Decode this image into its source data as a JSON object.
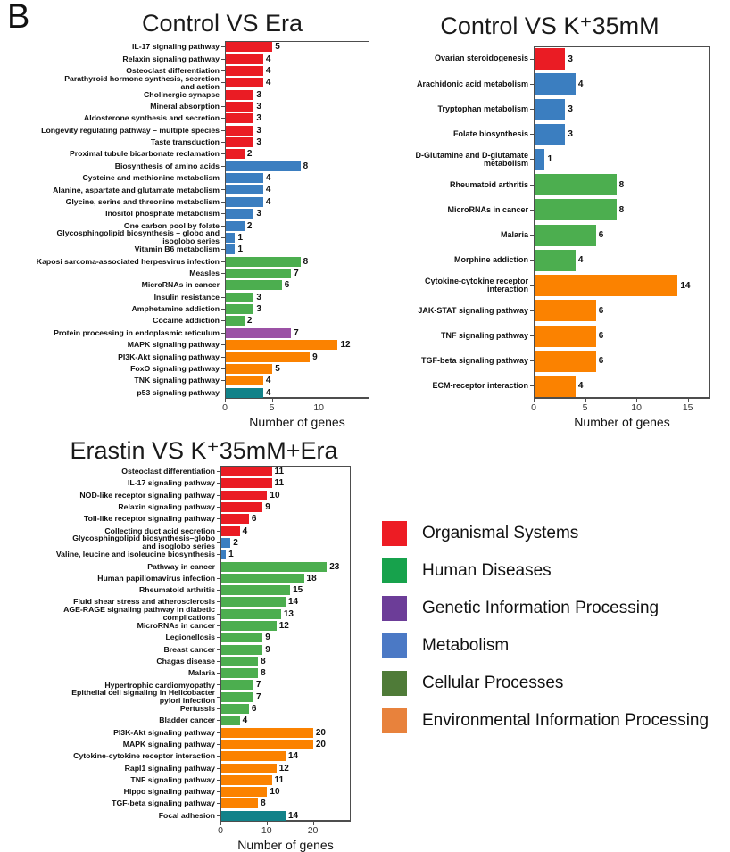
{
  "panel_letter": "B",
  "categories": {
    "OS": "Organismal Systems",
    "HD": "Human Diseases",
    "GIP": "Genetic Information Processing",
    "M": "Metabolism",
    "CP": "Cellular Processes",
    "EIP": "Environmental Information Processing"
  },
  "bar_palette": {
    "OS": "#EA1C24",
    "HD": "#4CAE4F",
    "GIP": "#9B51A5",
    "M": "#3B7EC0",
    "CP": "#128289",
    "EIP": "#FB8200"
  },
  "chart_data": [
    {
      "type": "bar",
      "orientation": "horizontal",
      "title": "Control VS Era",
      "xlabel": "Number of genes",
      "xlim": [
        0,
        15.4
      ],
      "xticks": [
        0,
        5,
        10
      ],
      "grid": false,
      "bars": [
        {
          "label": "IL-17 signaling pathway",
          "value": 5,
          "cat": "OS"
        },
        {
          "label": "Relaxin signaling pathway",
          "value": 4,
          "cat": "OS"
        },
        {
          "label": "Osteoclast differentiation",
          "value": 4,
          "cat": "OS"
        },
        {
          "label": "Parathyroid hormone synthesis, secretion\nand action",
          "value": 4,
          "cat": "OS"
        },
        {
          "label": "Cholinergic synapse",
          "value": 3,
          "cat": "OS"
        },
        {
          "label": "Mineral absorption",
          "value": 3,
          "cat": "OS"
        },
        {
          "label": "Aldosterone synthesis and secretion",
          "value": 3,
          "cat": "OS"
        },
        {
          "label": "Longevity regulating pathway – multiple species",
          "value": 3,
          "cat": "OS"
        },
        {
          "label": "Taste transduction",
          "value": 3,
          "cat": "OS"
        },
        {
          "label": "Proximal tubule bicarbonate reclamation",
          "value": 2,
          "cat": "OS"
        },
        {
          "label": "Biosynthesis of amino acids",
          "value": 8,
          "cat": "M"
        },
        {
          "label": "Cysteine and methionine metabolism",
          "value": 4,
          "cat": "M"
        },
        {
          "label": "Alanine, aspartate and glutamate metabolism",
          "value": 4,
          "cat": "M"
        },
        {
          "label": "Glycine, serine and threonine metabolism",
          "value": 4,
          "cat": "M"
        },
        {
          "label": "Inositol phosphate metabolism",
          "value": 3,
          "cat": "M"
        },
        {
          "label": "One carbon pool by folate",
          "value": 2,
          "cat": "M"
        },
        {
          "label": "Glycosphingolipid biosynthesis – globo and\nisoglobo series",
          "value": 1,
          "cat": "M"
        },
        {
          "label": "Vitamin B6 metabolism",
          "value": 1,
          "cat": "M"
        },
        {
          "label": "Kaposi sarcoma-associated herpesvirus infection",
          "value": 8,
          "cat": "HD"
        },
        {
          "label": "Measles",
          "value": 7,
          "cat": "HD"
        },
        {
          "label": "MicroRNAs in cancer",
          "value": 6,
          "cat": "HD"
        },
        {
          "label": "Insulin resistance",
          "value": 3,
          "cat": "HD"
        },
        {
          "label": "Amphetamine addiction",
          "value": 3,
          "cat": "HD"
        },
        {
          "label": "Cocaine addiction",
          "value": 2,
          "cat": "HD"
        },
        {
          "label": "Protein processing in endoplasmic reticulum",
          "value": 7,
          "cat": "GIP"
        },
        {
          "label": "MAPK signaling pathway",
          "value": 12,
          "cat": "EIP"
        },
        {
          "label": "PI3K-Akt signaling pathway",
          "value": 9,
          "cat": "EIP"
        },
        {
          "label": "FoxO signaling pathway",
          "value": 5,
          "cat": "EIP"
        },
        {
          "label": "TNK signaling pathway",
          "value": 4,
          "cat": "EIP"
        },
        {
          "label": "p53 signaling pathway",
          "value": 4,
          "cat": "CP"
        }
      ]
    },
    {
      "type": "bar",
      "orientation": "horizontal",
      "title": "Control VS K⁺35mM",
      "xlabel": "Number of genes",
      "xlim": [
        0,
        17.2
      ],
      "xticks": [
        0,
        5,
        10,
        15
      ],
      "grid": false,
      "bars": [
        {
          "label": "Ovarian steroidogenesis",
          "value": 3,
          "cat": "OS"
        },
        {
          "label": "Arachidonic acid metabolism",
          "value": 4,
          "cat": "M"
        },
        {
          "label": "Tryptophan metabolism",
          "value": 3,
          "cat": "M"
        },
        {
          "label": "Folate biosynthesis",
          "value": 3,
          "cat": "M"
        },
        {
          "label": "D-Glutamine and D-glutamate\nmetabolism",
          "value": 1,
          "cat": "M"
        },
        {
          "label": "Rheumatoid arthritis",
          "value": 8,
          "cat": "HD"
        },
        {
          "label": "MicroRNAs in cancer",
          "value": 8,
          "cat": "HD"
        },
        {
          "label": "Malaria",
          "value": 6,
          "cat": "HD"
        },
        {
          "label": "Morphine addiction",
          "value": 4,
          "cat": "HD"
        },
        {
          "label": "Cytokine-cytokine receptor\ninteraction",
          "value": 14,
          "cat": "EIP"
        },
        {
          "label": "JAK-STAT signaling pathway",
          "value": 6,
          "cat": "EIP"
        },
        {
          "label": "TNF signaling pathway",
          "value": 6,
          "cat": "EIP"
        },
        {
          "label": "TGF-beta signaling pathway",
          "value": 6,
          "cat": "EIP"
        },
        {
          "label": "ECM-receptor interaction",
          "value": 4,
          "cat": "EIP"
        }
      ]
    },
    {
      "type": "bar",
      "orientation": "horizontal",
      "title": "Erastin VS K⁺35mM+Era",
      "xlabel": "Number of genes",
      "xlim": [
        0,
        28.2
      ],
      "xticks": [
        0,
        10,
        20
      ],
      "grid": false,
      "bars": [
        {
          "label": "Osteoclast differentiation",
          "value": 11,
          "cat": "OS"
        },
        {
          "label": "IL-17 signaling pathway",
          "value": 11,
          "cat": "OS"
        },
        {
          "label": "NOD-like receptor signaling pathway",
          "value": 10,
          "cat": "OS"
        },
        {
          "label": "Relaxin signaling pathway",
          "value": 9,
          "cat": "OS"
        },
        {
          "label": "Toll-like receptor signaling pathway",
          "value": 6,
          "cat": "OS"
        },
        {
          "label": "Collecting duct acid secretion",
          "value": 4,
          "cat": "OS"
        },
        {
          "label": "Glycosphingolipid biosynthesis–globo\nand isoglobo series",
          "value": 2,
          "cat": "M"
        },
        {
          "label": "Valine, leucine and isoleucine biosynthesis",
          "value": 1,
          "cat": "M"
        },
        {
          "label": "Pathway in cancer",
          "value": 23,
          "cat": "HD"
        },
        {
          "label": "Human papillomavirus infection",
          "value": 18,
          "cat": "HD"
        },
        {
          "label": "Rheumatoid arthritis",
          "value": 15,
          "cat": "HD"
        },
        {
          "label": "Fluid shear stress and atherosclerosis",
          "value": 14,
          "cat": "HD"
        },
        {
          "label": "AGE-RAGE signaling pathway in diabetic\ncomplications",
          "value": 13,
          "cat": "HD"
        },
        {
          "label": "MicroRNAs in cancer",
          "value": 12,
          "cat": "HD"
        },
        {
          "label": "Legionellosis",
          "value": 9,
          "cat": "HD"
        },
        {
          "label": "Breast cancer",
          "value": 9,
          "cat": "HD"
        },
        {
          "label": "Chagas disease",
          "value": 8,
          "cat": "HD"
        },
        {
          "label": "Malaria",
          "value": 8,
          "cat": "HD"
        },
        {
          "label": "Hypertrophic cardiomyopathy",
          "value": 7,
          "cat": "HD"
        },
        {
          "label": "Epithelial cell signaling in Helicobacter\npylori infection",
          "value": 7,
          "cat": "HD"
        },
        {
          "label": "Pertussis",
          "value": 6,
          "cat": "HD"
        },
        {
          "label": "Bladder cancer",
          "value": 4,
          "cat": "HD"
        },
        {
          "label": "PI3K-Akt signaling pathway",
          "value": 20,
          "cat": "EIP"
        },
        {
          "label": "MAPK signaling pathway",
          "value": 20,
          "cat": "EIP"
        },
        {
          "label": "Cytokine-cytokine receptor interaction",
          "value": 14,
          "cat": "EIP"
        },
        {
          "label": "Rapl1 signaling pathway",
          "value": 12,
          "cat": "EIP"
        },
        {
          "label": "TNF signaling pathway",
          "value": 11,
          "cat": "EIP"
        },
        {
          "label": "Hippo signaling pathway",
          "value": 10,
          "cat": "EIP"
        },
        {
          "label": "TGF-beta signaling pathway",
          "value": 8,
          "cat": "EIP"
        },
        {
          "label": "Focal adhesion",
          "value": 14,
          "cat": "CP"
        }
      ]
    }
  ],
  "legend": {
    "items": [
      {
        "label": "Organismal Systems",
        "color": "#ED1C24"
      },
      {
        "label": "Human Diseases",
        "color": "#17A24C"
      },
      {
        "label": "Genetic Information Processing",
        "color": "#6C3D98"
      },
      {
        "label": "Metabolism",
        "color": "#4B79C5"
      },
      {
        "label": "Cellular Processes",
        "color": "#4F7B38"
      },
      {
        "label": "Environmental Information Processing",
        "color": "#E8823C"
      }
    ]
  }
}
